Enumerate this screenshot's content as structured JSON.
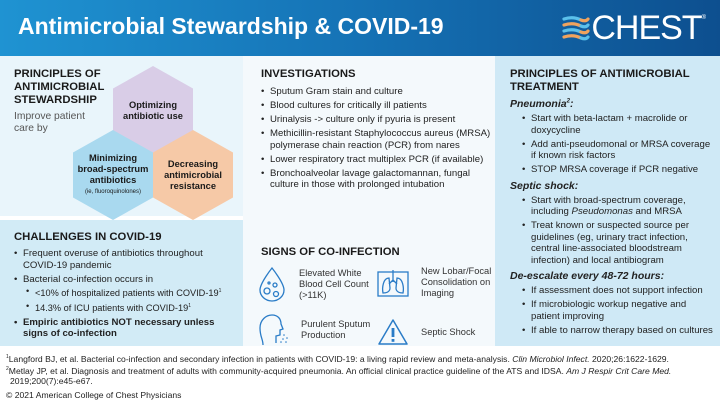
{
  "header": {
    "title": "Antimicrobial Stewardship & COVID-19",
    "logo": "CHEST",
    "logo_mark": "®"
  },
  "stewardship": {
    "heading": "PRINCIPLES OF ANTIMICROBIAL STEWARDSHIP",
    "subtitle": "Improve patient care by",
    "hexagons": [
      {
        "label": "Optimizing antibiotic use",
        "color": "#d9cde7"
      },
      {
        "label": "Minimizing broad-spectrum antibiotics",
        "note": "(ie, fluoroquinolones)",
        "color": "#a9d9ef"
      },
      {
        "label": "Decreasing antimicrobial resistance",
        "color": "#f6c9a7"
      }
    ]
  },
  "challenges": {
    "heading": "CHALLENGES IN COVID-19",
    "items": [
      "Frequent overuse of antibiotics throughout COVID-19 pandemic",
      "Bacterial co-infection occurs in"
    ],
    "sub_items": [
      "<10% of hospitalized patients with COVID-19",
      "14.3% of ICU patients with COVID-19"
    ],
    "sup": "1",
    "bold_item": "Empiric antibiotics NOT necessary unless signs of co-infection"
  },
  "investigations": {
    "heading": "INVESTIGATIONS",
    "items": [
      "Sputum Gram stain and culture",
      "Blood cultures for critically ill patients",
      "Urinalysis -> culture only if pyuria is present",
      "Methicillin-resistant Staphylococcus aureus (MRSA) polymerase chain reaction (PCR) from nares",
      "Lower respiratory tract multiplex PCR (if available)",
      "Bronchoalveolar lavage galactomannan, fungal culture in those with prolonged intubation"
    ]
  },
  "signs": {
    "heading": "SIGNS OF CO-INFECTION",
    "items": [
      {
        "icon": "blood-drop-icon",
        "label": "Elevated White Blood Cell Count (>11K)"
      },
      {
        "icon": "lungs-icon",
        "label": "New Lobar/Focal Consolidation on Imaging"
      },
      {
        "icon": "cough-icon",
        "label": "Purulent Sputum Production"
      },
      {
        "icon": "warning-icon",
        "label": "Septic Shock"
      }
    ],
    "icon_color": "#2a7cc7"
  },
  "treatment": {
    "heading": "PRINCIPLES OF ANTIMICROBIAL TREATMENT",
    "pneumonia": {
      "label": "Pneumonia",
      "sup": "2",
      "items": [
        "Start with beta-lactam + macrolide or doxycycline",
        "Add anti-pseudomonal or MRSA coverage if known risk factors",
        "STOP MRSA coverage if PCR negative"
      ]
    },
    "septic": {
      "label": "Septic shock:",
      "item1_a": "Start with broad-spectrum coverage, including ",
      "item1_i": "Pseudomonas",
      "item1_b": " and MRSA",
      "item2": "Treat known or suspected source per guidelines (eg, urinary tract infection, central line-associated bloodstream infection) and local antibiogram"
    },
    "deescalate": {
      "label": "De-escalate every 48-72 hours:",
      "items": [
        "If assessment does not support infection",
        "If microbiologic workup negative and patient improving",
        "If able to narrow therapy based on cultures"
      ]
    }
  },
  "footer": {
    "ref1": {
      "n": "1",
      "text": "Langford BJ, et al. Bacterial co-infection and secondary infection in patients with COVID-19: a living rapid review and meta-analysis. ",
      "journal": "Clin Microbiol Infect.",
      "tail": " 2020;26:1622-1629."
    },
    "ref2": {
      "n": "2",
      "text": "Metlay JP, et al. Diagnosis and treatment of adults with community-acquired pneumonia. An official clinical practice guideline of the ATS and IDSA. ",
      "journal": "Am J Respir Crit Care Med.",
      "tail": " 2019;200(7):e45-e67."
    },
    "copyright": "© 2021 American College of Chest Physicians"
  },
  "colors": {
    "header_start": "#1f93d2",
    "header_end": "#0d4f8f",
    "logo_orange": "#f0a35e",
    "logo_blue": "#5bc0eb"
  }
}
